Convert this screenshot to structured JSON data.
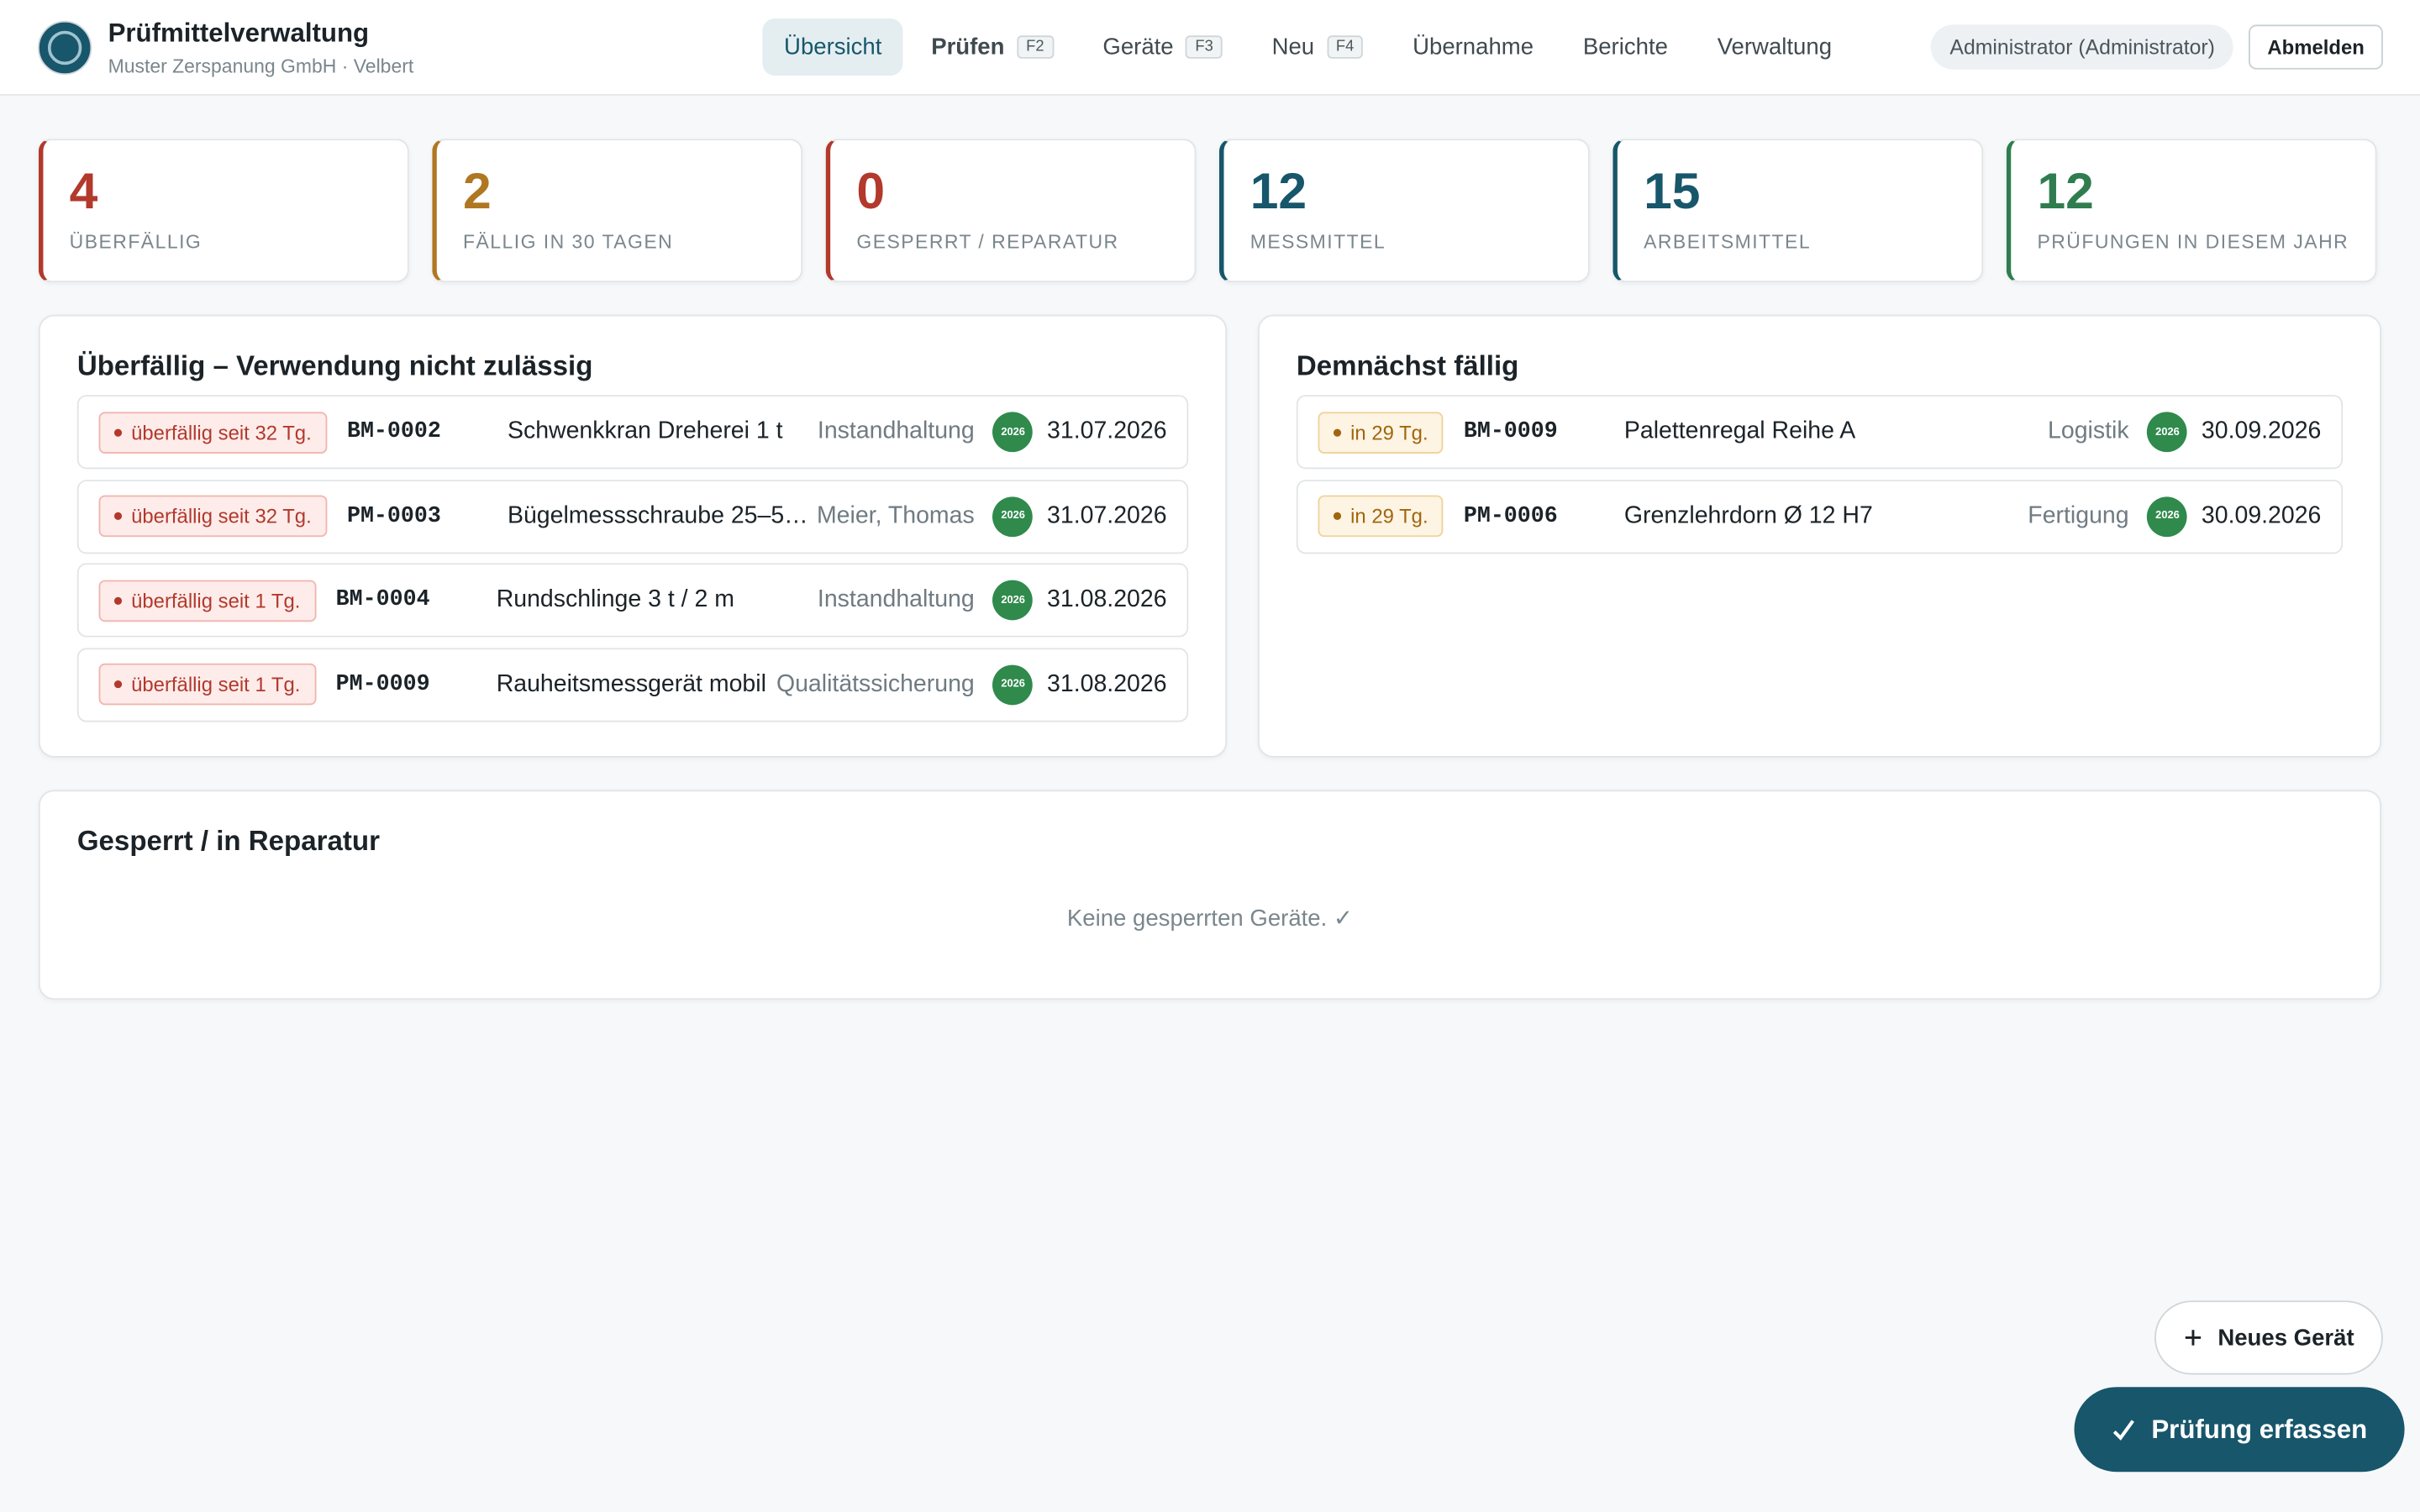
{
  "header": {
    "title": "Prüfmittelverwaltung",
    "subtitle": "Muster Zerspanung GmbH · Velbert",
    "nav": [
      {
        "label": "Übersicht",
        "active": true
      },
      {
        "label": "Prüfen",
        "key": "F2"
      },
      {
        "label": "Geräte",
        "key": "F3"
      },
      {
        "label": "Neu",
        "key": "F4"
      },
      {
        "label": "Übernahme"
      },
      {
        "label": "Berichte"
      },
      {
        "label": "Verwaltung"
      }
    ],
    "user": "Administrator (Administrator)",
    "logout": "Abmelden"
  },
  "stats": [
    {
      "value": 4,
      "label": "ÜBERFÄLLIG",
      "color": "#b2392c"
    },
    {
      "value": 2,
      "label": "FÄLLIG IN 30 TAGEN",
      "color": "#b07722"
    },
    {
      "value": 0,
      "label": "GESPERRT / REPARATUR",
      "color": "#b2392c"
    },
    {
      "value": 12,
      "label": "MESSMITTEL",
      "color": "#17566b"
    },
    {
      "value": 15,
      "label": "ARBEITSMITTEL",
      "color": "#17566b"
    },
    {
      "value": 12,
      "label": "PRÜFUNGEN IN DIESEM JAHR",
      "color": "#2f7d4f"
    }
  ],
  "overdue": {
    "title": "Überfällig – Verwendung nicht zulässig",
    "rows": [
      {
        "badge": "überfällig seit 32 Tg.",
        "id": "BM-0002",
        "name": "Schwenkkran Dreherei 1 t",
        "owner": "Instandhaltung",
        "sticker": "2026",
        "date": "31.07.2026"
      },
      {
        "badge": "überfällig seit 32 Tg.",
        "id": "PM-0003",
        "name": "Bügelmessschraube 25–5…",
        "owner": "Meier, Thomas",
        "sticker": "2026",
        "date": "31.07.2026"
      },
      {
        "badge": "überfällig seit 1 Tg.",
        "id": "BM-0004",
        "name": "Rundschlinge 3 t / 2 m",
        "owner": "Instandhaltung",
        "sticker": "2026",
        "date": "31.08.2026"
      },
      {
        "badge": "überfällig seit 1 Tg.",
        "id": "PM-0009",
        "name": "Rauheitsmessgerät mobil",
        "owner": "Qualitätssicherung",
        "sticker": "2026",
        "date": "31.08.2026"
      }
    ]
  },
  "upcoming": {
    "title": "Demnächst fällig",
    "rows": [
      {
        "badge": "in 29 Tg.",
        "id": "BM-0009",
        "name": "Palettenregal Reihe A",
        "owner": "Logistik",
        "sticker": "2026",
        "date": "30.09.2026"
      },
      {
        "badge": "in 29 Tg.",
        "id": "PM-0006",
        "name": "Grenzlehrdorn Ø 12 H7",
        "owner": "Fertigung",
        "sticker": "2026",
        "date": "30.09.2026"
      }
    ]
  },
  "locked": {
    "title": "Gesperrt / in Reparatur",
    "empty": "Keine gesperrten Geräte. ✓"
  },
  "actions": {
    "new": "Neues Gerät",
    "check": "Prüfung erfassen"
  }
}
